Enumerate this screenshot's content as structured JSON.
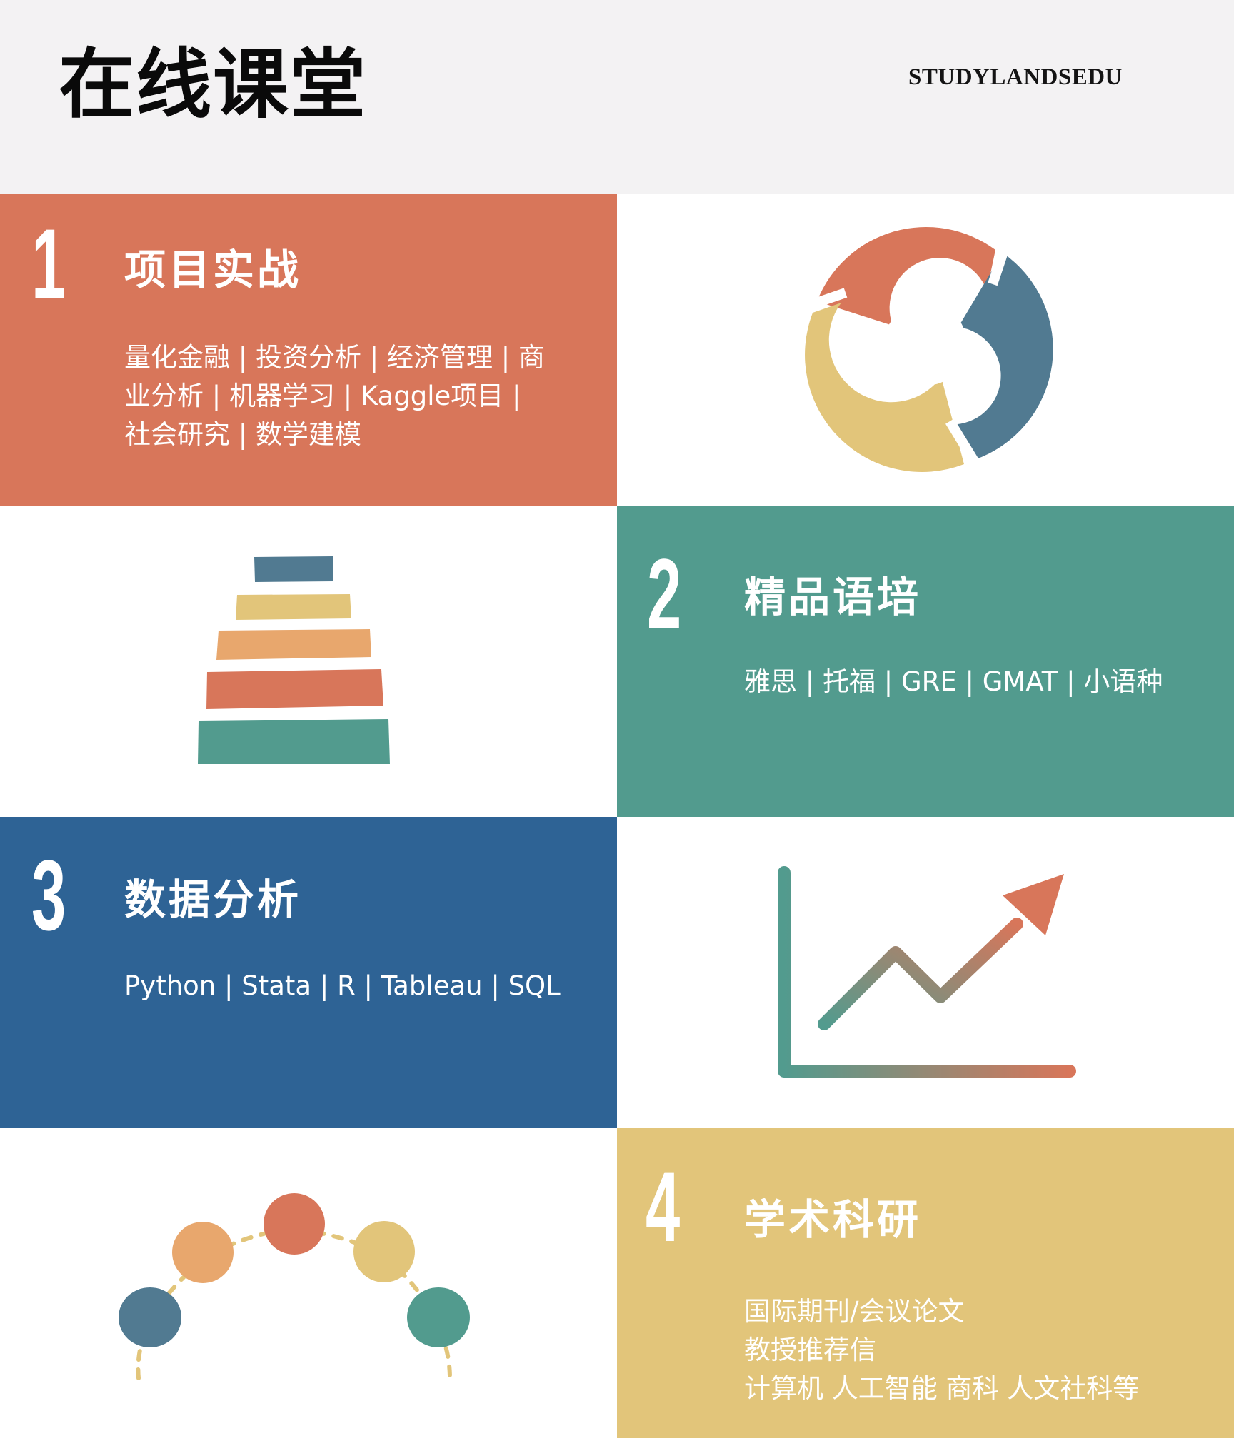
{
  "header": {
    "title": "在线课堂",
    "brand": "STUDYLANDSEDU"
  },
  "colors": {
    "header_bg": "#f3f2f3",
    "orange": "#d8765a",
    "teal": "#529b8e",
    "blue": "#2e6395",
    "yellow": "#e2c57a",
    "slate": "#517a91",
    "light_orange": "#e8a76d"
  },
  "sections": [
    {
      "number": "1",
      "title": "项目实战",
      "lines": [
        "量化金融 | 投资分析 | 经济管理 | 商",
        "业分析 | 机器学习 | Kaggle项目 |",
        "社会研究 | 数学建模"
      ],
      "icon": "cycle-ring-icon"
    },
    {
      "number": "2",
      "title": "精品语培",
      "lines": [
        "雅思 | 托福 | GRE | GMAT | 小语种"
      ],
      "icon": "stacked-bars-icon"
    },
    {
      "number": "3",
      "title": "数据分析",
      "lines": [
        "Python | Stata | R | Tableau | SQL"
      ],
      "icon": "trend-chart-icon"
    },
    {
      "number": "4",
      "title": "学术科研",
      "lines": [
        "国际期刊/会议论文",
        "教授推荐信",
        "计算机  人工智能  商科  人文社科等"
      ],
      "icon": "dots-arc-icon"
    }
  ]
}
